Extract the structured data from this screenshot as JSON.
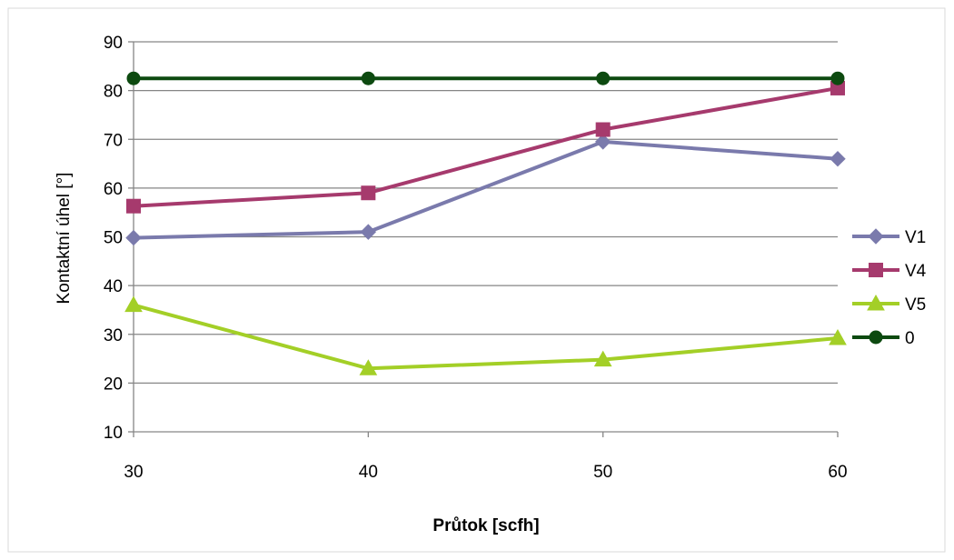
{
  "chart_data": {
    "type": "line",
    "title": "",
    "xlabel": "Průtok [scfh]",
    "ylabel": "Kontaktní úhel [°]",
    "x": [
      30,
      40,
      50,
      60
    ],
    "xlim": [
      30,
      60
    ],
    "ylim": [
      10,
      90
    ],
    "yticks": [
      10,
      20,
      30,
      40,
      50,
      60,
      70,
      80,
      90
    ],
    "grid": true,
    "legend_position": "right",
    "series": [
      {
        "name": "V1",
        "values": [
          49.8,
          51,
          69.5,
          66
        ],
        "color": "#7a7aac",
        "marker": "diamond"
      },
      {
        "name": "V4",
        "values": [
          56.3,
          59,
          72,
          80.5
        ],
        "color": "#a63a6d",
        "marker": "square"
      },
      {
        "name": "V5",
        "values": [
          36,
          23,
          24.8,
          29.2
        ],
        "color": "#a3cf27",
        "marker": "triangle"
      },
      {
        "name": "0",
        "values": [
          82.5,
          82.5,
          82.5,
          82.5
        ],
        "color": "#0d4a10",
        "marker": "circle"
      }
    ]
  }
}
